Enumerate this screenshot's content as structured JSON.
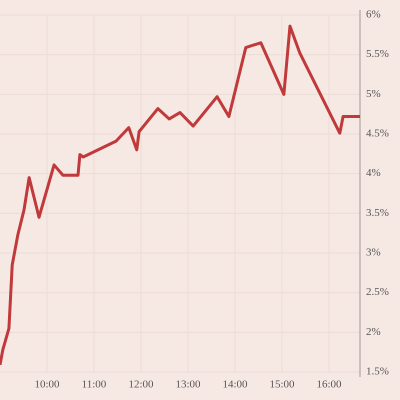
{
  "chart_data": {
    "type": "line",
    "x": [
      9.0,
      9.06,
      9.19,
      9.26,
      9.38,
      9.51,
      9.62,
      9.83,
      10.15,
      10.34,
      10.66,
      10.7,
      10.77,
      11.47,
      11.74,
      11.91,
      11.96,
      12.36,
      12.6,
      12.83,
      13.11,
      13.62,
      13.87,
      14.23,
      14.55,
      15.04,
      15.17,
      15.38,
      16.23,
      16.3,
      16.66
    ],
    "series": [
      {
        "color": "#c0393b",
        "values": [
          1.59,
          1.78,
          2.05,
          2.85,
          3.23,
          3.54,
          3.95,
          3.45,
          4.11,
          3.98,
          3.98,
          4.24,
          4.21,
          4.41,
          4.58,
          4.3,
          4.53,
          4.82,
          4.69,
          4.77,
          4.6,
          4.97,
          4.72,
          5.59,
          5.65,
          5.0,
          5.86,
          5.52,
          4.51,
          4.72,
          4.72
        ]
      }
    ],
    "xlim": [
      9,
      16.66
    ],
    "xticks": [
      {
        "value": 10,
        "label": "10:00"
      },
      {
        "value": 11,
        "label": "11:00"
      },
      {
        "value": 12,
        "label": "12:00"
      },
      {
        "value": 13,
        "label": "13:00"
      },
      {
        "value": 14,
        "label": "14:00"
      },
      {
        "value": 15,
        "label": "15:00"
      },
      {
        "value": 16,
        "label": "16:00"
      }
    ],
    "ylim": [
      1.5,
      6
    ],
    "yticks": [
      {
        "value": 1.5,
        "label": "1.5%"
      },
      {
        "value": 2,
        "label": "2%"
      },
      {
        "value": 2.5,
        "label": "2.5%"
      },
      {
        "value": 3,
        "label": "3%"
      },
      {
        "value": 3.5,
        "label": "3.5%"
      },
      {
        "value": 4,
        "label": "4%"
      },
      {
        "value": 4.5,
        "label": "4.5%"
      },
      {
        "value": 5,
        "label": "5%"
      },
      {
        "value": 5.5,
        "label": "5.5%"
      },
      {
        "value": 6,
        "label": "6%"
      }
    ],
    "grid": true
  }
}
